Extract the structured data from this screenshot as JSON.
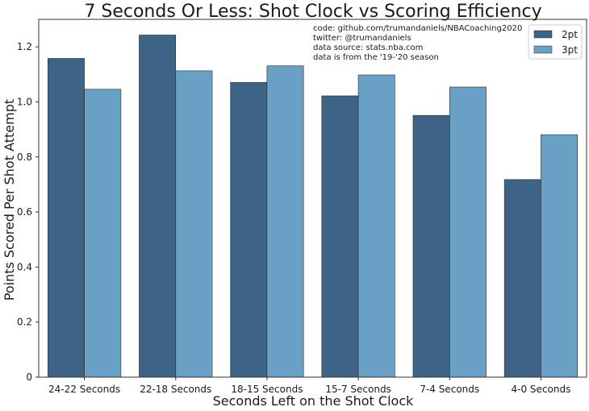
{
  "chart_data": {
    "type": "bar",
    "title": "7 Seconds Or Less: Shot Clock vs Scoring Efficiency",
    "xlabel": "Seconds Left on the Shot Clock",
    "ylabel": "Points Scored Per Shot Attempt",
    "categories": [
      "24-22 Seconds",
      "22-18 Seconds",
      "18-15 Seconds",
      "15-7 Seconds",
      "7-4 Seconds",
      "4-0 Seconds"
    ],
    "series": [
      {
        "name": "2pt",
        "color": "#3d6387",
        "values": [
          1.158,
          1.243,
          1.071,
          1.022,
          0.951,
          0.718
        ]
      },
      {
        "name": "3pt",
        "color": "#6aa0c4",
        "values": [
          1.046,
          1.113,
          1.131,
          1.098,
          1.054,
          0.881
        ]
      }
    ],
    "ylim": [
      0,
      1.3
    ],
    "yticks": [
      0,
      0.2,
      0.4,
      0.6,
      0.8,
      1.0,
      1.2
    ],
    "ytick_labels": [
      "0",
      "0.2",
      "0.4",
      "0.6",
      "0.8",
      "1.0",
      "1.2"
    ],
    "grid": false,
    "legend_position": "top-right",
    "annotation": [
      "code: github.com/trumandaniels/NBACoaching2020",
      "twitter: @trumandaniels",
      "data source: stats.nba.com",
      "data is from the '19-'20 season"
    ]
  }
}
